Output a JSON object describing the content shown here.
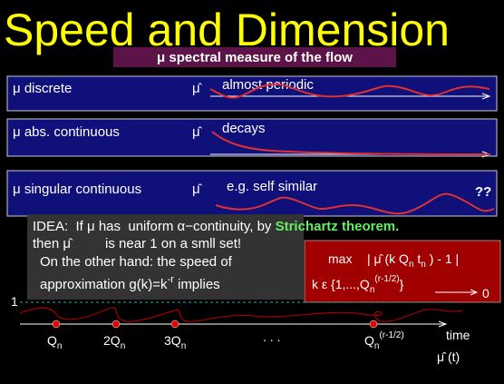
{
  "title": "Speed and  Dimension",
  "subtitle": {
    "symbol": "μ",
    "text": "spectral measure of the flow"
  },
  "rows": [
    {
      "symbol": "μ",
      "label": "discrete",
      "hat": "μ̂",
      "behavior": "almost periodic"
    },
    {
      "symbol": "μ",
      "label": "abs. continuous",
      "hat": "μ̂",
      "behavior": "decays"
    },
    {
      "symbol": "μ",
      "label": "singular continuous",
      "hat": "μ̂",
      "behavior": "e.g. self similar",
      "note": "??"
    }
  ],
  "idea": {
    "line1": {
      "lead": "IDEA:  If ",
      "mu": "μ",
      "mid": " has  uniform ",
      "alpha": "α−continuity, by ",
      "highlight": "Strichartz theorem."
    },
    "line2": {
      "lead": "then ",
      "hat": "μ̂",
      "rest": "is near 1 on a smll set!"
    },
    "line3": "On the other hand: the  speed of",
    "line4": {
      "lead": "approximation  g(k)=k",
      "exp": "-r",
      "rest": " implies"
    }
  },
  "bound": {
    "max": "max",
    "expr1": "| μ̂  (k Q",
    "sub1": "n",
    "expr2": " t",
    "sub2": "n",
    "expr3": " ) - 1 |",
    "range1": "k ε {1,...,Q",
    "sub3": "n",
    "sup3": "(r-1/2)",
    "range2": "}",
    "limit": "0"
  },
  "timeline": {
    "level": "1",
    "marks": [
      {
        "base": "Q",
        "sub": "n"
      },
      {
        "base": "2Q",
        "sub": "n"
      },
      {
        "base": "3Q",
        "sub": "n"
      },
      {
        "base": "Q",
        "sub": "n",
        "sup": "(r-1/2)"
      }
    ],
    "dots": ". . .",
    "axis_label": "time",
    "curve_label": "μ̂ (t)"
  }
}
